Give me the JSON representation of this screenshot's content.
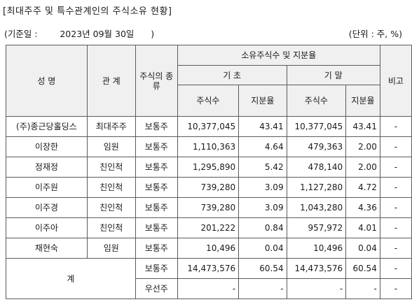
{
  "title": "[최대주주 및 특수관계인의 주식소유 현황]",
  "basis": "(기준일 :        2023년 09월 30일      )",
  "unit": "(단위 : 주, %)",
  "headers": {
    "name": "성 명",
    "relation": "관 계",
    "stock_type": "주식의 종류",
    "ownership": "소유주식수 및 지분율",
    "start": "기 초",
    "end": "기 말",
    "shares": "주식수",
    "ratio": "지분율",
    "remark": "비고"
  },
  "rows": [
    {
      "name": "(주)종근당홀딩스",
      "relation": "최대주주",
      "type": "보통주",
      "start_shares": "10,377,045",
      "start_ratio": "43.41",
      "end_shares": "10,377,045",
      "end_ratio": "43.41",
      "remark": "-"
    },
    {
      "name": "이장한",
      "relation": "임원",
      "type": "보통주",
      "start_shares": "1,110,363",
      "start_ratio": "4.64",
      "end_shares": "479,363",
      "end_ratio": "2.00",
      "remark": "-"
    },
    {
      "name": "정재정",
      "relation": "친인척",
      "type": "보통주",
      "start_shares": "1,295,890",
      "start_ratio": "5.42",
      "end_shares": "478,140",
      "end_ratio": "2.00",
      "remark": "-"
    },
    {
      "name": "이주원",
      "relation": "친인척",
      "type": "보통주",
      "start_shares": "739,280",
      "start_ratio": "3.09",
      "end_shares": "1,127,280",
      "end_ratio": "4.72",
      "remark": "-"
    },
    {
      "name": "이주경",
      "relation": "친인척",
      "type": "보통주",
      "start_shares": "739,280",
      "start_ratio": "3.09",
      "end_shares": "1,043,280",
      "end_ratio": "4.36",
      "remark": "-"
    },
    {
      "name": "이주아",
      "relation": "친인척",
      "type": "보통주",
      "start_shares": "201,222",
      "start_ratio": "0.84",
      "end_shares": "957,972",
      "end_ratio": "4.01",
      "remark": "-"
    },
    {
      "name": "채현숙",
      "relation": "임원",
      "type": "보통주",
      "start_shares": "10,496",
      "start_ratio": "0.04",
      "end_shares": "10,496",
      "end_ratio": "0.04",
      "remark": "-"
    }
  ],
  "total": {
    "label": "계",
    "common": {
      "type": "보통주",
      "start_shares": "14,473,576",
      "start_ratio": "60.54",
      "end_shares": "14,473,576",
      "end_ratio": "60.54",
      "remark": "-"
    },
    "preferred": {
      "type": "우선주",
      "start_shares": "-",
      "start_ratio": "-",
      "end_shares": "-",
      "end_ratio": "-",
      "remark": "-"
    }
  }
}
